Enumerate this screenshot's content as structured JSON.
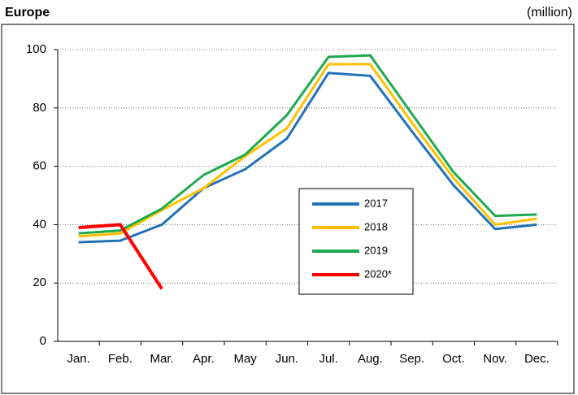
{
  "chart_data": {
    "type": "line",
    "title": "Europe",
    "unit_label": "(million)",
    "categories": [
      "Jan.",
      "Feb.",
      "Mar.",
      "Apr.",
      "May",
      "Jun.",
      "Jul.",
      "Aug.",
      "Sep.",
      "Oct.",
      "Nov.",
      "Dec."
    ],
    "series": [
      {
        "name": "2017",
        "color": "#2272b8",
        "values": [
          34,
          34.5,
          40,
          52.5,
          59,
          69.5,
          92,
          91,
          72,
          53.5,
          38.5,
          40
        ]
      },
      {
        "name": "2018",
        "color": "#ffc000",
        "values": [
          36,
          37,
          45,
          52.5,
          63.5,
          73,
          95,
          95,
          75,
          56,
          40,
          42
        ]
      },
      {
        "name": "2019",
        "color": "#1eaa4e",
        "values": [
          37,
          38,
          45.5,
          57,
          64,
          77.5,
          97.5,
          98,
          78,
          58,
          43,
          43.5
        ]
      },
      {
        "name": "2020*",
        "color": "#ff0000",
        "values": [
          39,
          40,
          18,
          null,
          null,
          null,
          null,
          null,
          null,
          null,
          null,
          null
        ]
      }
    ],
    "ylim": [
      0,
      100
    ],
    "yticks": [
      0,
      20,
      40,
      60,
      80,
      100
    ],
    "grid": true
  }
}
